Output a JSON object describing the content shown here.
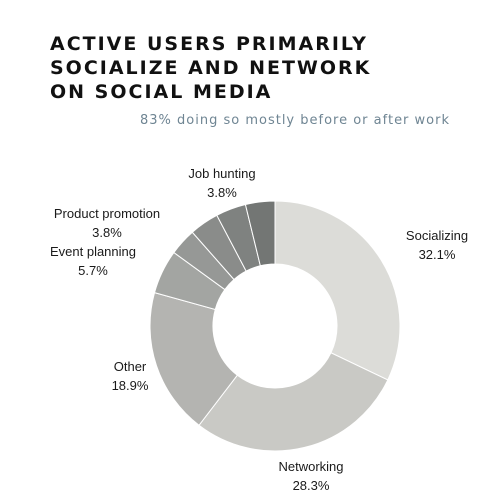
{
  "title_lines": [
    "ACTIVE USERS PRIMARILY",
    "SOCIALIZE AND NETWORK",
    "ON SOCIAL MEDIA"
  ],
  "subtitle": "83% doing so mostly before or after work",
  "chart_data": {
    "type": "pie",
    "donut": true,
    "title": "ACTIVE USERS PRIMARILY SOCIALIZE AND NETWORK ON SOCIAL MEDIA",
    "subtitle": "83% doing so mostly before or after work",
    "unit": "%",
    "legend": "none",
    "slices": [
      {
        "label": "Socializing",
        "value": 32.1,
        "display": "32.1%",
        "color": "#dcdcd8"
      },
      {
        "label": "Networking",
        "value": 28.3,
        "display": "28.3%",
        "color": "#c9c9c5"
      },
      {
        "label": "Other",
        "value": 18.9,
        "display": "18.9%",
        "color": "#b4b4b1"
      },
      {
        "label": "Event planning",
        "value": 5.7,
        "display": "5.7%",
        "color": "#a3a5a2"
      },
      {
        "label": "",
        "value": 3.5,
        "display": "",
        "color": "#969896"
      },
      {
        "label": "Product promotion",
        "value": 3.8,
        "display": "3.8%",
        "color": "#8a8c8a"
      },
      {
        "label": "",
        "value": 3.9,
        "display": "",
        "color": "#7f8280"
      },
      {
        "label": "Job hunting",
        "value": 3.8,
        "display": "3.8%",
        "color": "#737674"
      }
    ]
  }
}
